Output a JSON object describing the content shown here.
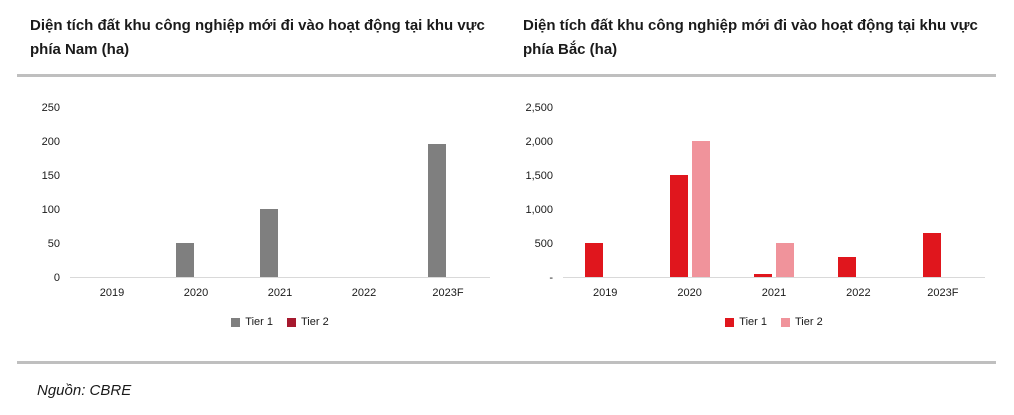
{
  "source_note": "Nguồn: CBRE",
  "chart_data": [
    {
      "type": "bar",
      "title": "Diện tích đất khu công nghiệp mới đi vào hoạt động tại khu vực phía Nam (ha)",
      "categories": [
        "2019",
        "2020",
        "2021",
        "2022",
        "2023F"
      ],
      "series": [
        {
          "name": "Tier 1",
          "color": "#7f7f7f",
          "values": [
            0,
            50,
            100,
            0,
            195
          ]
        },
        {
          "name": "Tier 2",
          "color": "#a6192e",
          "values": [
            0,
            0,
            0,
            0,
            0
          ]
        }
      ],
      "xlabel": "",
      "ylabel": "",
      "ylim": [
        0,
        250
      ],
      "yticks": [
        "250",
        "200",
        "150",
        "100",
        "50",
        "0"
      ],
      "grid": false,
      "legend_position": "bottom"
    },
    {
      "type": "bar",
      "title": "Diện tích đất khu công nghiệp mới đi vào hoạt động tại khu vực phía Bắc (ha)",
      "categories": [
        "2019",
        "2020",
        "2021",
        "2022",
        "2023F"
      ],
      "series": [
        {
          "name": "Tier 1",
          "color": "#e0161d",
          "values": [
            500,
            1500,
            50,
            300,
            650
          ]
        },
        {
          "name": "Tier 2",
          "color": "#f0939b",
          "values": [
            0,
            2000,
            500,
            0,
            0
          ]
        }
      ],
      "xlabel": "",
      "ylabel": "",
      "ylim": [
        0,
        2500
      ],
      "yticks": [
        "2,500",
        "2,000",
        "1,500",
        "1,000",
        "500",
        "-"
      ],
      "grid": false,
      "legend_position": "bottom"
    }
  ],
  "colors": {
    "divider": "#bfbfbf",
    "baseline": "#d9d9d9",
    "title_text": "#1a1a1a",
    "tick_text": "#1a1a1a"
  }
}
